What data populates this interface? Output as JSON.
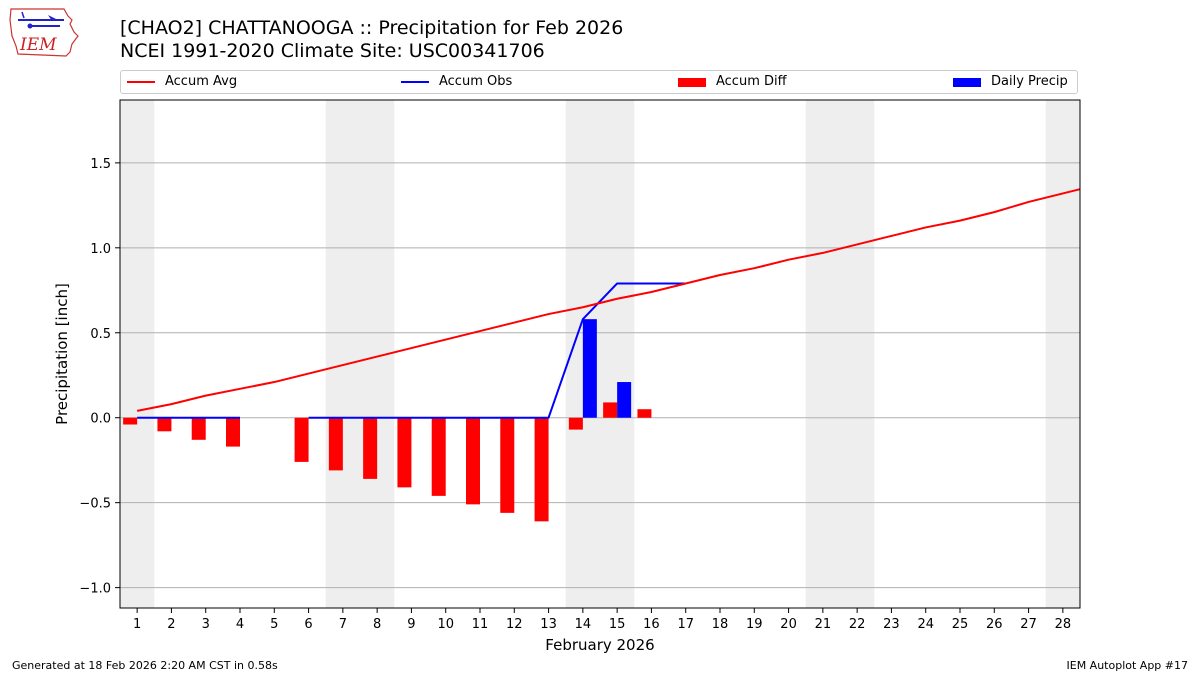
{
  "logo": {
    "text": "IEM"
  },
  "header": {
    "title": "[CHAO2] CHATTANOOGA :: Precipitation for Feb 2026",
    "subtitle": "NCEI 1991-2020 Climate Site: USC00341706"
  },
  "legend": {
    "items": [
      {
        "label": "Accum Avg",
        "kind": "line",
        "color": "#ff0000"
      },
      {
        "label": "Accum Obs",
        "kind": "line",
        "color": "#0000ff"
      },
      {
        "label": "Accum Diff",
        "kind": "box",
        "color": "#ff0000"
      },
      {
        "label": "Daily Precip",
        "kind": "box",
        "color": "#0000ff"
      }
    ]
  },
  "footer": {
    "left": "Generated at 18 Feb 2026 2:20 AM CST in 0.58s",
    "right": "IEM Autoplot App #17"
  },
  "chart_data": {
    "type": "bar",
    "xlabel": "February 2026",
    "ylabel": "Precipitation [inch]",
    "x": [
      1,
      2,
      3,
      4,
      5,
      6,
      7,
      8,
      9,
      10,
      11,
      12,
      13,
      14,
      15,
      16,
      17,
      18,
      19,
      20,
      21,
      22,
      23,
      24,
      25,
      26,
      27,
      28
    ],
    "xlim": [
      0.5,
      28.5
    ],
    "ylim": [
      -1.12,
      1.87
    ],
    "yticks": [
      -1.0,
      -0.5,
      0.0,
      0.5,
      1.0,
      1.5
    ],
    "ytick_labels": [
      "−1.0",
      "−0.5",
      "0.0",
      "0.5",
      "1.0",
      "1.5"
    ],
    "grid": "horizontal",
    "weekend_shading": [
      [
        0.5,
        1.5
      ],
      [
        6.5,
        8.5
      ],
      [
        13.5,
        15.5
      ],
      [
        20.5,
        22.5
      ],
      [
        27.5,
        28.5
      ]
    ],
    "series": [
      {
        "name": "Accum Avg",
        "type": "line",
        "color": "#ff0000",
        "values": [
          0.04,
          0.08,
          0.13,
          0.17,
          0.21,
          0.26,
          0.31,
          0.36,
          0.41,
          0.46,
          0.51,
          0.56,
          0.61,
          0.65,
          0.7,
          0.74,
          0.79,
          0.84,
          0.88,
          0.93,
          0.97,
          1.02,
          1.07,
          1.12,
          1.16,
          1.21,
          1.27,
          1.32
        ]
      },
      {
        "name": "Accum Obs",
        "type": "line",
        "color": "#0000ff",
        "values": [
          0.0,
          0.0,
          0.0,
          0.0,
          null,
          0.0,
          0.0,
          0.0,
          0.0,
          0.0,
          0.0,
          0.0,
          0.0,
          0.58,
          0.79,
          0.79,
          0.79,
          null,
          null,
          null,
          null,
          null,
          null,
          null,
          null,
          null,
          null,
          null
        ]
      },
      {
        "name": "Accum Diff",
        "type": "bar",
        "color": "#ff0000",
        "values": [
          -0.04,
          -0.08,
          -0.13,
          -0.17,
          null,
          -0.26,
          -0.31,
          -0.36,
          -0.41,
          -0.46,
          -0.51,
          -0.56,
          -0.61,
          -0.07,
          0.09,
          0.05,
          null,
          null,
          null,
          null,
          null,
          null,
          null,
          null,
          null,
          null,
          null,
          null
        ]
      },
      {
        "name": "Daily Precip",
        "type": "bar",
        "color": "#0000ff",
        "values": [
          0,
          0,
          0,
          0,
          null,
          0,
          0,
          0,
          0,
          0,
          0,
          0,
          0,
          0.58,
          0.21,
          0,
          null,
          null,
          null,
          null,
          null,
          null,
          null,
          null,
          null,
          null,
          null,
          null
        ]
      }
    ]
  }
}
